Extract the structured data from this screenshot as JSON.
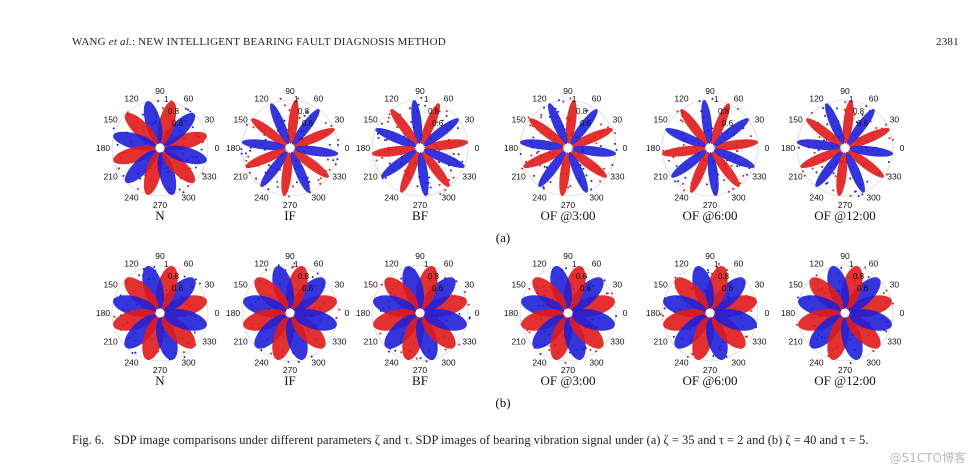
{
  "header": {
    "author": "WANG ",
    "etal": "et al.",
    "title": ": NEW INTELLIGENT BEARING FAULT DIAGNOSIS METHOD",
    "page": "2381"
  },
  "polar_axis": {
    "angle_labels": [
      "0",
      "30",
      "60",
      "90",
      "120",
      "150",
      "180",
      "210",
      "240",
      "270",
      "300",
      "330"
    ],
    "radial_labels": [
      "1",
      "0.8",
      "0.6"
    ]
  },
  "figure": {
    "rows": [
      {
        "panel_labels": [
          "N",
          "IF",
          "BF",
          "OF @3:00",
          "OF @6:00",
          "OF @12:00"
        ],
        "row_label": "(a)"
      },
      {
        "panel_labels": [
          "N",
          "IF",
          "BF",
          "OF @3:00",
          "OF @6:00",
          "OF @12:00"
        ],
        "row_label": "(b)"
      }
    ]
  },
  "caption": {
    "label": "Fig. 6.",
    "text": "SDP image comparisons under different parameters ζ and τ. SDP images of bearing vibration signal under (a) ζ = 35 and τ = 2 and (b) ζ = 40 and τ = 5."
  },
  "watermark": "@51CTO博客"
}
